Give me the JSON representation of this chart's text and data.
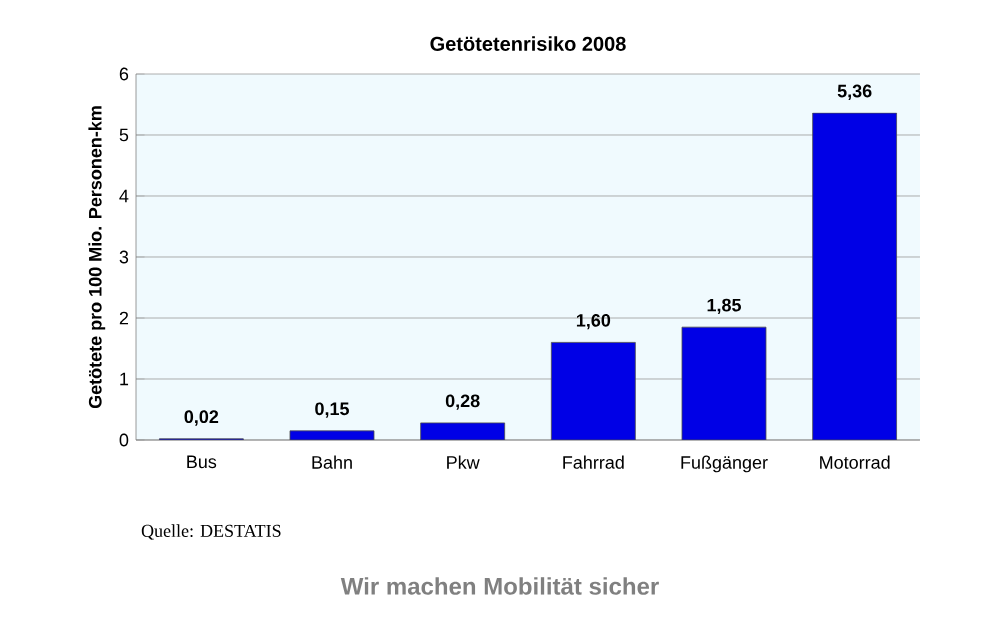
{
  "chart_data": {
    "type": "bar",
    "title": "Getötetenrisiko 2008",
    "ylabel": "Getötete pro 100 Mio. Personen-km",
    "categories": [
      "Bus",
      "Bahn",
      "Pkw",
      "Fahrrad",
      "Fußgänger",
      "Motorrad"
    ],
    "values": [
      0.02,
      0.15,
      0.28,
      1.6,
      1.85,
      5.36
    ],
    "value_labels": [
      "0,02",
      "0,15",
      "0,28",
      "1,60",
      "1,85",
      "5,36"
    ],
    "color": "#0000e6",
    "ylim": [
      0,
      6
    ],
    "yticks": [
      0,
      1,
      2,
      3,
      4,
      5,
      6
    ],
    "grid": "y",
    "annotations": [
      "Quelle: DESTATIS",
      "Wir machen Mobilität sicher"
    ]
  }
}
